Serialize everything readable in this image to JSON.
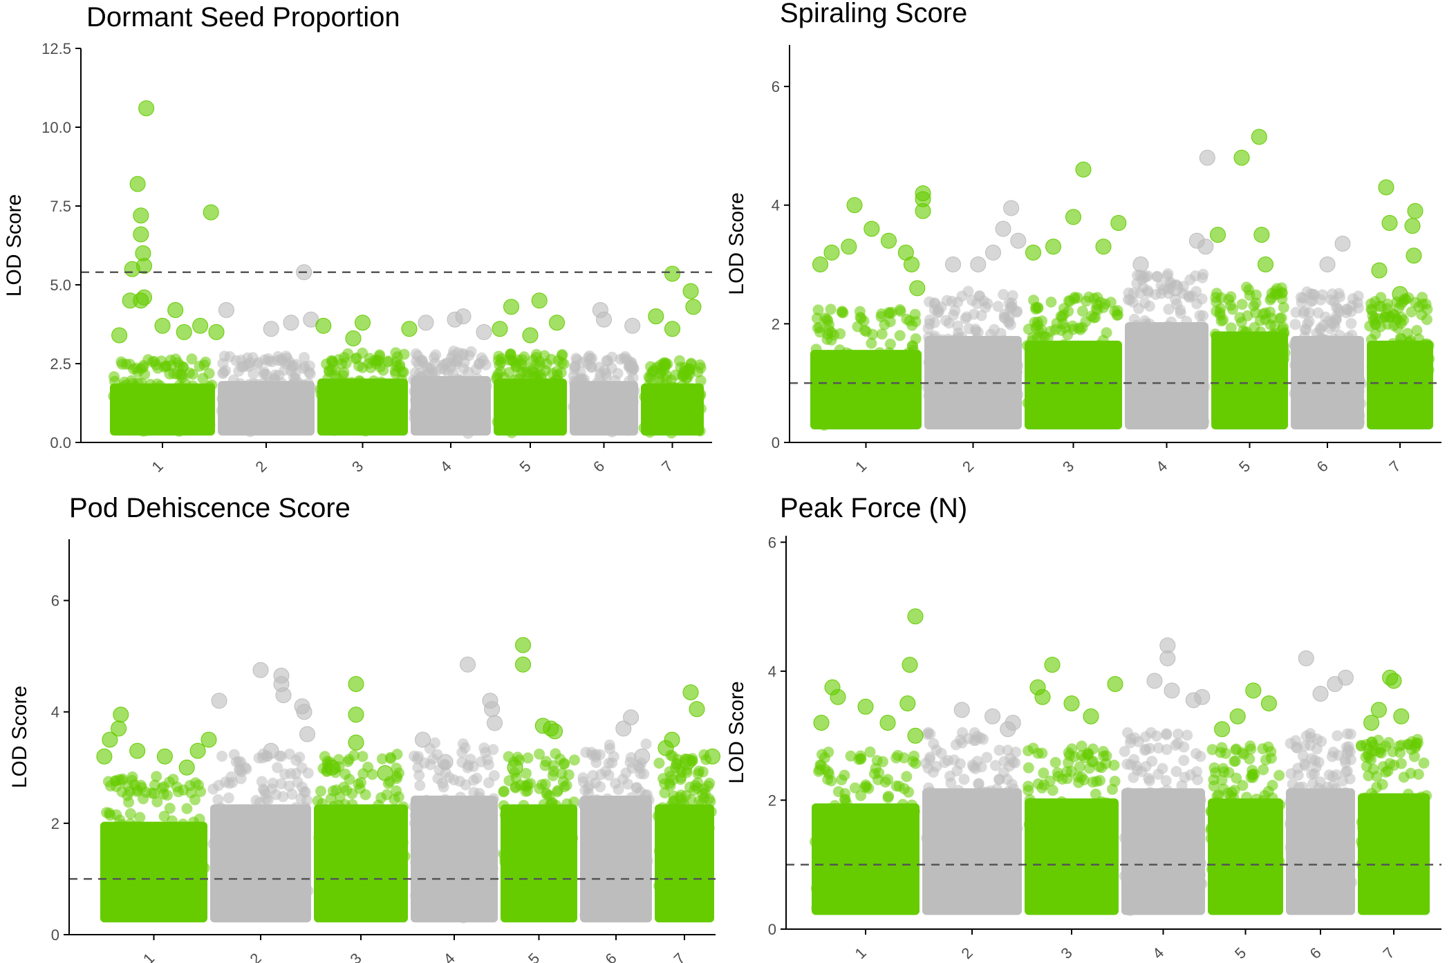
{
  "colors": {
    "green": "#66cc00",
    "grey": "#bdbdbd",
    "axis": "#000000",
    "threshold": "#555555"
  },
  "chart_data": [
    {
      "type": "scatter",
      "title": "Dormant Seed Proportion",
      "ylabel": "LOD Score",
      "xlabel": "",
      "ylim": [
        0,
        12.5
      ],
      "yticks": [
        0,
        2.5,
        5,
        7.5,
        10,
        12.5
      ],
      "ytick_labels": [
        "0.0",
        "2.5",
        "5.0",
        "7.5",
        "10.0",
        "12.5"
      ],
      "threshold": 5.4,
      "chromosomes": [
        "1",
        "2",
        "3",
        "4",
        "5",
        "6",
        "7"
      ],
      "bulk_max": [
        2.4,
        2.5,
        2.6,
        2.7,
        2.6,
        2.5,
        2.4
      ],
      "peaks": [
        [
          1,
          0.35,
          10.6
        ],
        [
          1,
          0.27,
          8.2
        ],
        [
          1,
          0.3,
          7.2
        ],
        [
          1,
          0.3,
          6.6
        ],
        [
          1,
          0.32,
          6.0
        ],
        [
          1,
          0.33,
          5.6
        ],
        [
          1,
          0.22,
          5.5
        ],
        [
          1,
          0.33,
          4.6
        ],
        [
          1,
          0.3,
          4.5
        ],
        [
          1,
          0.2,
          4.5
        ],
        [
          1,
          0.62,
          4.2
        ],
        [
          1,
          0.95,
          7.3
        ],
        [
          1,
          0.5,
          3.7
        ],
        [
          1,
          0.85,
          3.7
        ],
        [
          1,
          1.0,
          3.5
        ],
        [
          1,
          0.1,
          3.4
        ],
        [
          1,
          0.7,
          3.5
        ],
        [
          2,
          0.88,
          5.4
        ],
        [
          2,
          0.1,
          4.2
        ],
        [
          2,
          0.75,
          3.8
        ],
        [
          2,
          0.95,
          3.9
        ],
        [
          2,
          0.55,
          3.6
        ],
        [
          3,
          0.08,
          3.7
        ],
        [
          3,
          0.5,
          3.8
        ],
        [
          3,
          0.4,
          3.3
        ],
        [
          3,
          1.0,
          3.6
        ],
        [
          4,
          0.2,
          3.8
        ],
        [
          4,
          0.55,
          3.9
        ],
        [
          4,
          0.65,
          4.0
        ],
        [
          4,
          0.9,
          3.5
        ],
        [
          5,
          0.25,
          4.3
        ],
        [
          5,
          0.62,
          4.5
        ],
        [
          5,
          0.1,
          3.6
        ],
        [
          5,
          0.85,
          3.8
        ],
        [
          5,
          0.5,
          3.4
        ],
        [
          6,
          0.45,
          4.2
        ],
        [
          6,
          0.5,
          3.9
        ],
        [
          6,
          0.9,
          3.7
        ],
        [
          7,
          0.5,
          5.35
        ],
        [
          7,
          0.78,
          4.8
        ],
        [
          7,
          0.82,
          4.3
        ],
        [
          7,
          0.25,
          4.0
        ],
        [
          7,
          0.5,
          3.6
        ]
      ]
    },
    {
      "type": "scatter",
      "title": "Spiraling Score",
      "ylabel": "LOD Score",
      "xlabel": "",
      "ylim": [
        0,
        6.7
      ],
      "yticks": [
        0,
        2,
        4,
        6
      ],
      "ytick_labels": [
        "0",
        "2",
        "4",
        "6"
      ],
      "threshold": 1.0,
      "chromosomes": [
        "1",
        "2",
        "3",
        "4",
        "5",
        "6",
        "7"
      ],
      "bulk_max": [
        2.0,
        2.3,
        2.2,
        2.6,
        2.4,
        2.3,
        2.2
      ],
      "peaks": [
        [
          1,
          0.4,
          4.0
        ],
        [
          1,
          0.55,
          3.6
        ],
        [
          1,
          0.7,
          3.4
        ],
        [
          1,
          0.35,
          3.3
        ],
        [
          1,
          0.2,
          3.2
        ],
        [
          1,
          0.1,
          3.0
        ],
        [
          1,
          0.85,
          3.2
        ],
        [
          1,
          1.0,
          4.2
        ],
        [
          1,
          1.0,
          4.1
        ],
        [
          1,
          1.0,
          3.9
        ],
        [
          1,
          0.9,
          3.0
        ],
        [
          1,
          0.95,
          2.6
        ],
        [
          2,
          0.3,
          3.0
        ],
        [
          2,
          0.55,
          3.0
        ],
        [
          2,
          0.7,
          3.2
        ],
        [
          2,
          0.8,
          3.6
        ],
        [
          2,
          0.88,
          3.95
        ],
        [
          2,
          0.95,
          3.4
        ],
        [
          3,
          0.5,
          3.8
        ],
        [
          3,
          0.6,
          4.6
        ],
        [
          3,
          0.3,
          3.3
        ],
        [
          3,
          0.1,
          3.2
        ],
        [
          3,
          0.8,
          3.3
        ],
        [
          3,
          0.95,
          3.7
        ],
        [
          4,
          0.2,
          3.0
        ],
        [
          4,
          0.6,
          2.6
        ],
        [
          4,
          0.85,
          3.4
        ],
        [
          4,
          0.95,
          3.3
        ],
        [
          4,
          0.97,
          4.8
        ],
        [
          5,
          0.1,
          3.5
        ],
        [
          5,
          0.4,
          4.8
        ],
        [
          5,
          0.62,
          5.15
        ],
        [
          5,
          0.65,
          3.5
        ],
        [
          5,
          0.7,
          3.0
        ],
        [
          6,
          0.7,
          3.35
        ],
        [
          6,
          0.5,
          3.0
        ],
        [
          7,
          0.3,
          4.3
        ],
        [
          7,
          0.35,
          3.7
        ],
        [
          7,
          0.68,
          3.65
        ],
        [
          7,
          0.72,
          3.9
        ],
        [
          7,
          0.7,
          3.15
        ],
        [
          7,
          0.2,
          2.9
        ],
        [
          7,
          0.5,
          2.5
        ]
      ]
    },
    {
      "type": "scatter",
      "title": "Pod Dehiscence Score",
      "ylabel": "LOD Score",
      "xlabel": "",
      "ylim": [
        0,
        7.1
      ],
      "yticks": [
        0,
        2,
        4,
        6
      ],
      "ytick_labels": [
        "0",
        "2",
        "4",
        "6"
      ],
      "threshold": 1.0,
      "chromosomes": [
        "1",
        "2",
        "3",
        "4",
        "5",
        "6",
        "7"
      ],
      "bulk_max": [
        2.6,
        3.0,
        3.0,
        3.2,
        3.0,
        3.2,
        3.0
      ],
      "peaks": [
        [
          1,
          0.2,
          3.95
        ],
        [
          1,
          0.18,
          3.7
        ],
        [
          1,
          0.1,
          3.5
        ],
        [
          1,
          0.35,
          3.3
        ],
        [
          1,
          0.6,
          3.2
        ],
        [
          1,
          0.9,
          3.3
        ],
        [
          1,
          1.0,
          3.5
        ],
        [
          1,
          0.05,
          3.2
        ],
        [
          1,
          0.8,
          3.0
        ],
        [
          2,
          0.1,
          4.2
        ],
        [
          2,
          0.5,
          4.75
        ],
        [
          2,
          0.7,
          4.65
        ],
        [
          2,
          0.7,
          4.5
        ],
        [
          2,
          0.72,
          4.3
        ],
        [
          2,
          0.9,
          4.1
        ],
        [
          2,
          0.92,
          4.0
        ],
        [
          2,
          0.95,
          3.6
        ],
        [
          2,
          0.6,
          3.3
        ],
        [
          3,
          0.45,
          4.5
        ],
        [
          3,
          0.45,
          3.95
        ],
        [
          3,
          0.45,
          3.45
        ],
        [
          3,
          0.2,
          3.0
        ],
        [
          3,
          0.75,
          2.9
        ],
        [
          4,
          0.15,
          3.5
        ],
        [
          4,
          0.65,
          4.85
        ],
        [
          4,
          0.9,
          4.2
        ],
        [
          4,
          0.92,
          4.05
        ],
        [
          4,
          0.95,
          3.8
        ],
        [
          4,
          0.4,
          3.1
        ],
        [
          5,
          0.3,
          5.2
        ],
        [
          5,
          0.3,
          4.85
        ],
        [
          5,
          0.55,
          3.75
        ],
        [
          5,
          0.65,
          3.7
        ],
        [
          5,
          0.7,
          3.65
        ],
        [
          5,
          0.2,
          3.0
        ],
        [
          6,
          0.6,
          3.7
        ],
        [
          6,
          0.7,
          3.9
        ],
        [
          6,
          0.85,
          3.2
        ],
        [
          7,
          0.6,
          4.35
        ],
        [
          7,
          0.7,
          4.05
        ],
        [
          7,
          0.3,
          3.5
        ],
        [
          7,
          0.2,
          3.35
        ],
        [
          7,
          0.55,
          3.1
        ],
        [
          7,
          0.95,
          3.2
        ]
      ]
    },
    {
      "type": "scatter",
      "title": "Peak Force (N)",
      "ylabel": "LOD Score",
      "xlabel": "",
      "ylim": [
        0,
        6.1
      ],
      "yticks": [
        0,
        2,
        4,
        6
      ],
      "ytick_labels": [
        "0",
        "2",
        "4",
        "6"
      ],
      "threshold": 1.0,
      "chromosomes": [
        "1",
        "2",
        "3",
        "4",
        "5",
        "6",
        "7"
      ],
      "bulk_max": [
        2.5,
        2.8,
        2.6,
        2.8,
        2.6,
        2.8,
        2.7
      ],
      "peaks": [
        [
          1,
          0.95,
          4.85
        ],
        [
          1,
          0.9,
          4.1
        ],
        [
          1,
          0.88,
          3.5
        ],
        [
          1,
          0.2,
          3.75
        ],
        [
          1,
          0.25,
          3.6
        ],
        [
          1,
          0.5,
          3.45
        ],
        [
          1,
          0.7,
          3.2
        ],
        [
          1,
          0.1,
          3.2
        ],
        [
          1,
          0.95,
          3.0
        ],
        [
          2,
          0.4,
          3.4
        ],
        [
          2,
          0.7,
          3.3
        ],
        [
          2,
          0.85,
          3.1
        ],
        [
          2,
          0.9,
          3.2
        ],
        [
          3,
          0.3,
          4.1
        ],
        [
          3,
          0.15,
          3.75
        ],
        [
          3,
          0.2,
          3.6
        ],
        [
          3,
          0.5,
          3.5
        ],
        [
          3,
          0.7,
          3.3
        ],
        [
          3,
          0.95,
          3.8
        ],
        [
          4,
          0.4,
          3.85
        ],
        [
          4,
          0.55,
          4.4
        ],
        [
          4,
          0.55,
          4.2
        ],
        [
          4,
          0.6,
          3.7
        ],
        [
          4,
          0.85,
          3.55
        ],
        [
          4,
          0.95,
          3.6
        ],
        [
          5,
          0.6,
          3.7
        ],
        [
          5,
          0.8,
          3.5
        ],
        [
          5,
          0.4,
          3.3
        ],
        [
          5,
          0.2,
          3.1
        ],
        [
          6,
          0.3,
          4.2
        ],
        [
          6,
          0.5,
          3.65
        ],
        [
          6,
          0.7,
          3.8
        ],
        [
          6,
          0.85,
          3.9
        ],
        [
          7,
          0.45,
          3.9
        ],
        [
          7,
          0.5,
          3.85
        ],
        [
          7,
          0.3,
          3.4
        ],
        [
          7,
          0.2,
          3.2
        ],
        [
          7,
          0.6,
          3.3
        ]
      ]
    }
  ]
}
